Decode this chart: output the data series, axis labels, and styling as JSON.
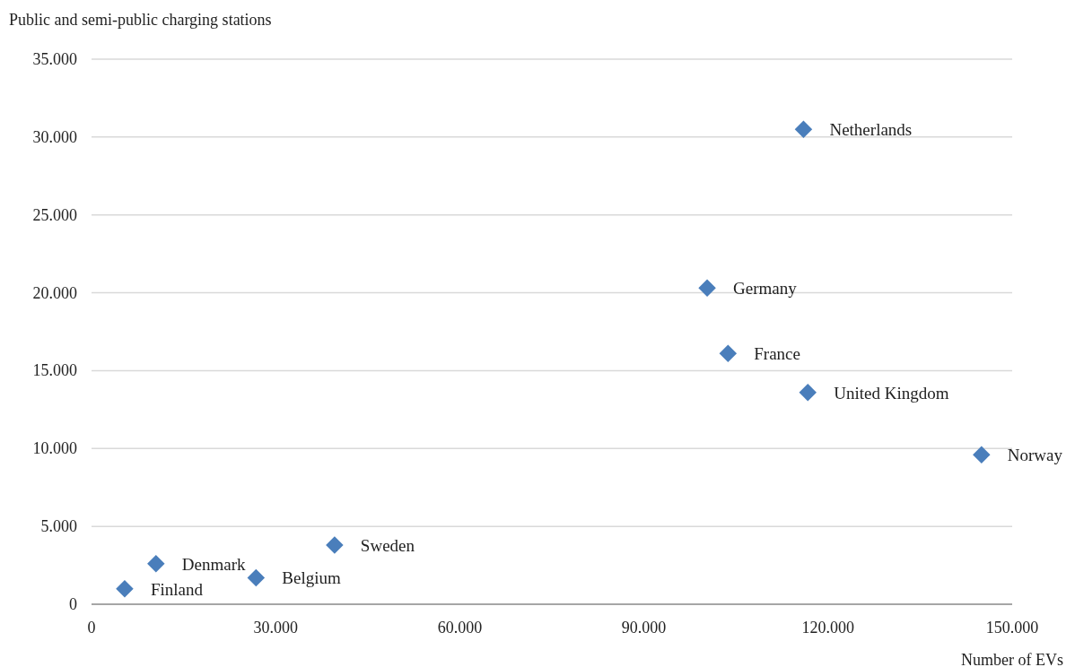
{
  "chart_data": {
    "type": "scatter",
    "xlabel": "Number of EVs",
    "ylabel": "Public and semi-public charging stations",
    "xlim": [
      0,
      150000
    ],
    "ylim": [
      0,
      35000
    ],
    "xticks": [
      0,
      {
        "value": 30000,
        "label": "30.000"
      },
      {
        "value": 60000,
        "label": "60.000"
      },
      {
        "value": 90000,
        "label": "90.000"
      },
      {
        "value": 120000,
        "label": "120.000"
      },
      {
        "value": 150000,
        "label": "150.000"
      }
    ],
    "yticks": [
      0,
      {
        "value": 5000,
        "label": "5.000"
      },
      {
        "value": 10000,
        "label": "10.000"
      },
      {
        "value": 15000,
        "label": "15.000"
      },
      {
        "value": 20000,
        "label": "20.000"
      },
      {
        "value": 25000,
        "label": "25.000"
      },
      {
        "value": 30000,
        "label": "30.000"
      },
      {
        "value": 35000,
        "label": "35.000"
      }
    ],
    "grid": "y",
    "marker": "diamond",
    "series": [
      {
        "name": "Netherlands",
        "color": "#4a7ebb",
        "x": [
          116000
        ],
        "values": [
          30500
        ]
      },
      {
        "name": "Germany",
        "color": "#4a7ebb",
        "x": [
          100300
        ],
        "values": [
          20300
        ]
      },
      {
        "name": "France",
        "color": "#4a7ebb",
        "x": [
          103700
        ],
        "values": [
          16100
        ]
      },
      {
        "name": "United Kingdom",
        "color": "#4a7ebb",
        "x": [
          116700
        ],
        "values": [
          13600
        ]
      },
      {
        "name": "Norway",
        "color": "#4a7ebb",
        "x": [
          145000
        ],
        "values": [
          9600
        ]
      },
      {
        "name": "Sweden",
        "color": "#4a7ebb",
        "x": [
          39600
        ],
        "values": [
          3800
        ]
      },
      {
        "name": "Denmark",
        "color": "#4a7ebb",
        "x": [
          10500
        ],
        "values": [
          2600
        ]
      },
      {
        "name": "Belgium",
        "color": "#4a7ebb",
        "x": [
          26800
        ],
        "values": [
          1700
        ]
      },
      {
        "name": "Finland",
        "color": "#4a7ebb",
        "x": [
          5400
        ],
        "values": [
          1000
        ]
      }
    ]
  }
}
